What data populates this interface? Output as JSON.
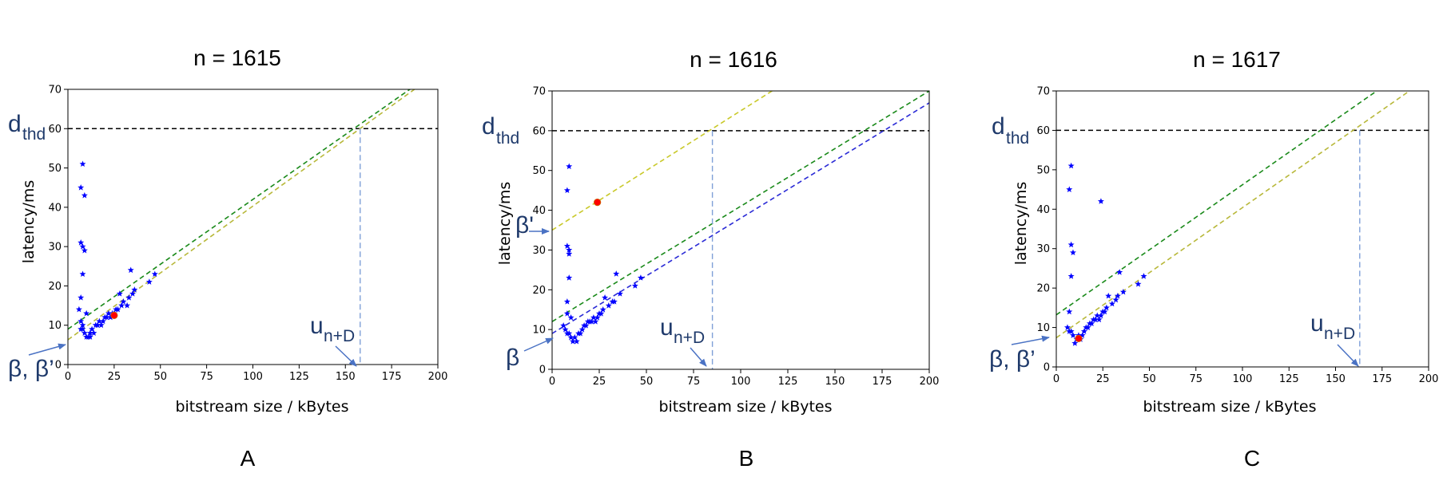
{
  "chart_data": [
    {
      "type": "scatter",
      "title": "n = 1615",
      "panel_label": "A",
      "xlabel": "bitstream size / kBytes",
      "ylabel": "latency/ms",
      "xlim": [
        0,
        200
      ],
      "ylim": [
        0,
        70
      ],
      "xticks": [
        "0",
        "25",
        "50",
        "75",
        "100",
        "125",
        "150",
        "175",
        "200"
      ],
      "yticks": [
        "0",
        "10",
        "20",
        "30",
        "40",
        "50",
        "60",
        "70"
      ],
      "grid": false,
      "threshold": 60,
      "series": [
        {
          "marker": "star",
          "color": "#0000ff",
          "points": [
            [
              8,
              51
            ],
            [
              7,
              45
            ],
            [
              9,
              43
            ],
            [
              7,
              31
            ],
            [
              8,
              30
            ],
            [
              9,
              29
            ],
            [
              8,
              23
            ],
            [
              7,
              17
            ],
            [
              6,
              14
            ],
            [
              10,
              13
            ],
            [
              7,
              11
            ],
            [
              7,
              9
            ],
            [
              8,
              9
            ],
            [
              8,
              10
            ],
            [
              9,
              8
            ],
            [
              10,
              7
            ],
            [
              11,
              7
            ],
            [
              12,
              8
            ],
            [
              12,
              7
            ],
            [
              13,
              9
            ],
            [
              14,
              8
            ],
            [
              15,
              10
            ],
            [
              16,
              10
            ],
            [
              17,
              11
            ],
            [
              18,
              10
            ],
            [
              19,
              11
            ],
            [
              20,
              12
            ],
            [
              21,
              12
            ],
            [
              22,
              13
            ],
            [
              23,
              12
            ],
            [
              24,
              13
            ],
            [
              25,
              13
            ],
            [
              26,
              14
            ],
            [
              27,
              14
            ],
            [
              28,
              18
            ],
            [
              29,
              15
            ],
            [
              30,
              16
            ],
            [
              32,
              15
            ],
            [
              34,
              24
            ],
            [
              33,
              17
            ],
            [
              35,
              18
            ],
            [
              36,
              19
            ],
            [
              44,
              21
            ],
            [
              47,
              23
            ]
          ]
        },
        {
          "marker": "circle",
          "color": "#ff0000",
          "points": [
            [
              25,
              12.5
            ]
          ]
        }
      ],
      "lines": [
        {
          "color": "#1a8a1a",
          "intercept": 9,
          "slope": 0.33
        },
        {
          "color": "#b8b83a",
          "intercept": 6.3,
          "slope": 0.34
        }
      ],
      "annotations": {
        "threshold_symbol": "d",
        "threshold_sub": "thd",
        "intercept_symbol": "β, β’",
        "u_symbol": "u",
        "u_sub": "n+D",
        "u_value": 158
      }
    },
    {
      "type": "scatter",
      "title": "n = 1616",
      "panel_label": "B",
      "xlabel": "bitstream size / kBytes",
      "ylabel": "latency/ms",
      "xlim": [
        0,
        200
      ],
      "ylim": [
        0,
        70
      ],
      "xticks": [
        "0",
        "25",
        "50",
        "75",
        "100",
        "125",
        "150",
        "175",
        "200"
      ],
      "yticks": [
        "0",
        "10",
        "20",
        "30",
        "40",
        "50",
        "60",
        "70"
      ],
      "grid": false,
      "threshold": 60,
      "series": [
        {
          "marker": "star",
          "color": "#0000ff",
          "points": [
            [
              9,
              51
            ],
            [
              8,
              45
            ],
            [
              9,
              30
            ],
            [
              8,
              31
            ],
            [
              9,
              29
            ],
            [
              9,
              23
            ],
            [
              8,
              17
            ],
            [
              8,
              14
            ],
            [
              10,
              13
            ],
            [
              6,
              11
            ],
            [
              7,
              10
            ],
            [
              8,
              9
            ],
            [
              9,
              9
            ],
            [
              10,
              8
            ],
            [
              11,
              7
            ],
            [
              12,
              8
            ],
            [
              13,
              7
            ],
            [
              14,
              9
            ],
            [
              15,
              9
            ],
            [
              16,
              10
            ],
            [
              17,
              11
            ],
            [
              18,
              11
            ],
            [
              19,
              12
            ],
            [
              20,
              12
            ],
            [
              21,
              12
            ],
            [
              22,
              13
            ],
            [
              23,
              12
            ],
            [
              24,
              13
            ],
            [
              25,
              14
            ],
            [
              26,
              14
            ],
            [
              27,
              15
            ],
            [
              28,
              18
            ],
            [
              30,
              16
            ],
            [
              32,
              17
            ],
            [
              34,
              24
            ],
            [
              33,
              17
            ],
            [
              36,
              19
            ],
            [
              44,
              21
            ],
            [
              47,
              23
            ]
          ]
        },
        {
          "marker": "circle",
          "color": "#ff0000",
          "points": [
            [
              24,
              42
            ]
          ]
        }
      ],
      "lines": [
        {
          "color": "#c9c92a",
          "intercept": 35,
          "slope": 0.3
        },
        {
          "color": "#1a8a1a",
          "intercept": 12,
          "slope": 0.29
        },
        {
          "color": "#2a2ad6",
          "intercept": 9,
          "slope": 0.29
        }
      ],
      "annotations": {
        "threshold_symbol": "d",
        "threshold_sub": "thd",
        "beta_prime": "β'",
        "beta": "β",
        "u_symbol": "u",
        "u_sub": "n+D",
        "u_value": 85
      }
    },
    {
      "type": "scatter",
      "title": "n = 1617",
      "panel_label": "C",
      "xlabel": "bitstream size / kBytes",
      "ylabel": "latency/ms",
      "xlim": [
        0,
        200
      ],
      "ylim": [
        0,
        70
      ],
      "xticks": [
        "0",
        "25",
        "50",
        "75",
        "100",
        "125",
        "150",
        "175",
        "200"
      ],
      "yticks": [
        "0",
        "10",
        "20",
        "30",
        "40",
        "50",
        "60",
        "70"
      ],
      "grid": false,
      "threshold": 60,
      "series": [
        {
          "marker": "star",
          "color": "#0000ff",
          "points": [
            [
              8,
              51
            ],
            [
              7,
              45
            ],
            [
              24,
              42
            ],
            [
              8,
              31
            ],
            [
              9,
              29
            ],
            [
              8,
              23
            ],
            [
              7,
              14
            ],
            [
              6,
              10
            ],
            [
              7,
              9
            ],
            [
              8,
              9
            ],
            [
              9,
              8
            ],
            [
              10,
              6
            ],
            [
              11,
              7
            ],
            [
              12,
              8
            ],
            [
              13,
              7
            ],
            [
              14,
              8
            ],
            [
              15,
              9
            ],
            [
              16,
              10
            ],
            [
              17,
              10
            ],
            [
              18,
              11
            ],
            [
              19,
              11
            ],
            [
              20,
              12
            ],
            [
              21,
              12
            ],
            [
              22,
              13
            ],
            [
              23,
              12
            ],
            [
              24,
              13
            ],
            [
              25,
              14
            ],
            [
              26,
              14
            ],
            [
              27,
              15
            ],
            [
              28,
              18
            ],
            [
              30,
              16
            ],
            [
              32,
              17
            ],
            [
              34,
              24
            ],
            [
              33,
              18
            ],
            [
              36,
              19
            ],
            [
              44,
              21
            ],
            [
              47,
              23
            ]
          ]
        },
        {
          "marker": "circle",
          "color": "#ff0000",
          "points": [
            [
              12,
              7.2
            ]
          ]
        }
      ],
      "lines": [
        {
          "color": "#1a8a1a",
          "intercept": 13.2,
          "slope": 0.33
        },
        {
          "color": "#b8b83a",
          "intercept": 7.4,
          "slope": 0.33
        }
      ],
      "annotations": {
        "threshold_symbol": "d",
        "threshold_sub": "thd",
        "intercept_symbol": "β, β’",
        "u_symbol": "u",
        "u_sub": "n+D",
        "u_value": 163
      }
    }
  ]
}
